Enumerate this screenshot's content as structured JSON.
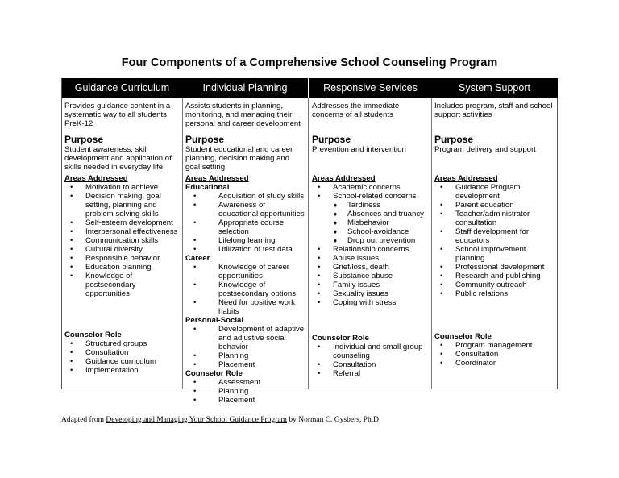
{
  "title": "Four Components of a Comprehensive School Counseling Program",
  "columns": [
    {
      "header": "Guidance Curriculum",
      "description": "Provides guidance content in a systematic way to all students PreK-12",
      "purpose_label": "Purpose",
      "purpose": "Student awareness, skill development and application of skills needed in everyday life",
      "areas_label": "Areas Addressed",
      "areas": [
        "Motivation to achieve",
        "Decision making, goal setting, planning and problem solving skills",
        "Self-esteem development",
        "Interpersonal effectiveness",
        "Communication skills",
        "Cultural diversity",
        "Responsible behavior",
        "Education planning",
        "Knowledge of postsecondary opportunities"
      ],
      "role_label": "Counselor Role",
      "roles": [
        "Structured groups",
        "Consultation",
        "Guidance curriculum",
        "Implementation"
      ]
    },
    {
      "header": "Individual Planning",
      "description": "Assists students in planning, monitoring, and managing their personal and career development",
      "purpose_label": "Purpose",
      "purpose": "Student educational and career planning, decision making and goal setting",
      "areas_label": "Areas Addressed",
      "groups": [
        {
          "label": "Educational",
          "items": [
            "Acquisition of study skills",
            "Awareness of educational opportunities",
            "Appropriate course selection",
            "Lifelong learning",
            "Utilization of test data"
          ]
        },
        {
          "label": "Career",
          "items": [
            "Knowledge of career opportunities",
            "Knowledge of postsecondary options",
            "Need for positive work habits"
          ]
        },
        {
          "label": "Personal-Social",
          "items": [
            "Development of adaptive and adjustive social behavior",
            "Planning",
            "Placement"
          ]
        }
      ],
      "role_label": "Counselor Role",
      "roles": [
        "Assessment",
        "Planning",
        "Placement"
      ]
    },
    {
      "header": "Responsive Services",
      "description": "Addresses the immediate concerns of all students",
      "purpose_label": "Purpose",
      "purpose": "Prevention and intervention",
      "areas_label": "Areas Addressed",
      "areas_a": [
        "Academic concerns",
        "School-related concerns"
      ],
      "sub_areas": [
        "Tardiness",
        "Absences and truancy",
        "Misbehavior",
        "School-avoidance",
        "Drop out prevention"
      ],
      "areas_b": [
        "Relationship concerns",
        "Abuse issues",
        "Grief/loss, death",
        "Substance abuse",
        "Family issues",
        "Sexuality issues",
        "Coping with stress"
      ],
      "role_label": "Counselor Role",
      "roles": [
        "Individual and small group counseling",
        "Consultation",
        "Referral"
      ]
    },
    {
      "header": "System Support",
      "description": "Includes program, staff and school support activities",
      "purpose_label": "Purpose",
      "purpose": "Program delivery and support",
      "areas_label": "Areas Addressed",
      "areas": [
        "Guidance Program development",
        "Parent education",
        "Teacher/administrator consultation",
        "Staff development for educators",
        "School improvement planning",
        "Professional development",
        "Research and publishing",
        "Community outreach",
        "Public relations"
      ],
      "role_label": "Counselor Role",
      "roles": [
        "Program management",
        "Consultation",
        "Coordinator"
      ]
    }
  ],
  "footer": {
    "prefix": "Adapted from ",
    "book": "Developing and Managing Your School Guidance Program",
    "suffix": " by Norman C. Gysbers, Ph.D"
  }
}
